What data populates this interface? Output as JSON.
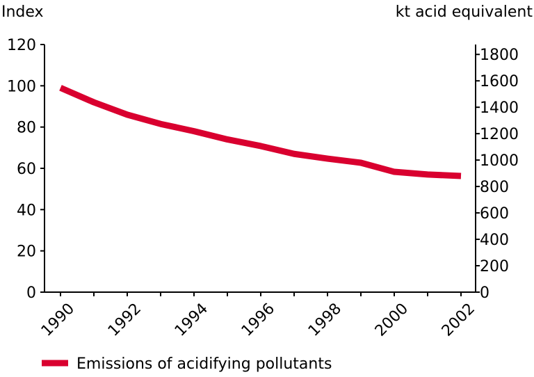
{
  "chart_data": {
    "type": "line",
    "title": "",
    "ylabel": "Index",
    "y2label": "kt acid equivalent",
    "xlabel": "",
    "x": [
      1990,
      1991,
      1992,
      1993,
      1994,
      1995,
      1996,
      1997,
      1998,
      1999,
      2000,
      2001,
      2002
    ],
    "x_tick_labels": [
      "1990",
      "1992",
      "1994",
      "1996",
      "1998",
      "2000",
      "2002"
    ],
    "ylim": [
      0,
      120
    ],
    "y_ticks": [
      "0",
      "20",
      "40",
      "60",
      "80",
      "100",
      "120"
    ],
    "y2lim": [
      0,
      1875
    ],
    "y2_ticks": [
      "0",
      "200",
      "400",
      "600",
      "800",
      "1000",
      "1200",
      "1400",
      "1600",
      "1800"
    ],
    "grid": false,
    "legend_position": "bottom-left",
    "series": [
      {
        "name": "Emissions of acidifying pollutants",
        "color": "#d9002f",
        "values": [
          99,
          92,
          86,
          81.5,
          78,
          74,
          70.8,
          67,
          64.7,
          62.7,
          58.3,
          57,
          56.3
        ]
      }
    ]
  }
}
